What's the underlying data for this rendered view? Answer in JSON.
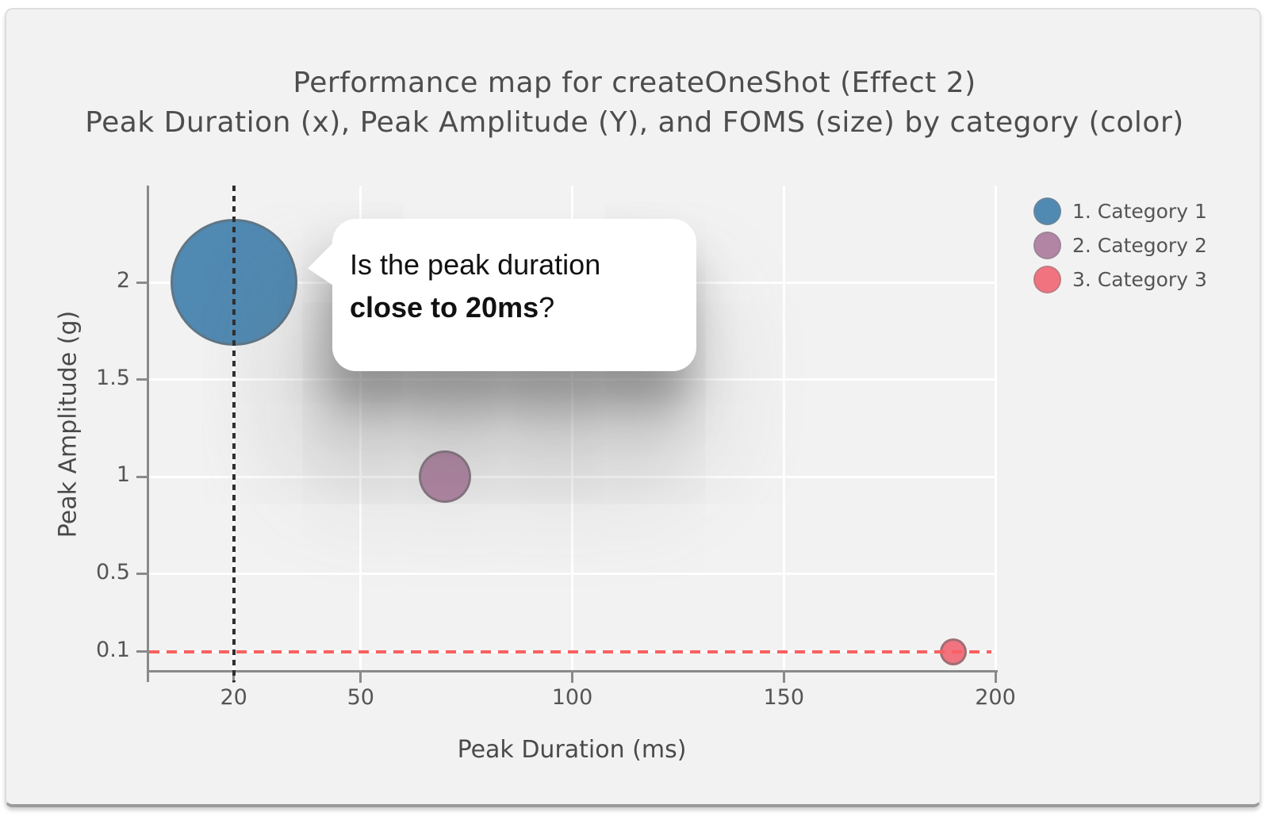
{
  "window": {
    "background": "#ffffff",
    "panel_background": "#f2f2f2",
    "panel_border": "#dedede",
    "panel_bottom_edge": "#9b9b9b"
  },
  "chart_data": {
    "type": "scatter",
    "subtype": "bubble",
    "title": "Performance map for createOneShot (Effect 2)",
    "subtitle": "Peak Duration (x), Peak Amplitude (Y), and FOMS (size) by category (color)",
    "xlabel": "Peak Duration (ms)",
    "ylabel": "Peak Amplitude (g)",
    "xlim": [
      0,
      200
    ],
    "ylim": [
      0,
      2.5
    ],
    "x_ticks": [
      20,
      50,
      100,
      150,
      200
    ],
    "y_ticks": [
      0.1,
      0.5,
      1,
      1.5,
      2
    ],
    "grid": true,
    "gridline_color": "#ffffff",
    "axis_color": "#8a8a8a",
    "tick_label_color": "#555555",
    "title_color": "#4d4d4d",
    "legend_position": "top-right",
    "legend_text_color": "#555555",
    "bubble_stroke_color": "#696969",
    "series": [
      {
        "name": "1. Category 1",
        "color": "#5089b2",
        "points": [
          {
            "x": 20,
            "y": 2.0,
            "radius_px": 80
          }
        ]
      },
      {
        "name": "2. Category 2",
        "color": "#b285a4",
        "points": [
          {
            "x": 70,
            "y": 1.0,
            "radius_px": 33
          }
        ]
      },
      {
        "name": "3. Category 3",
        "color": "#f0737f",
        "points": [
          {
            "x": 190,
            "y": 0.1,
            "radius_px": 17
          }
        ]
      }
    ],
    "reference_lines": [
      {
        "axis": "x",
        "value": 20,
        "style": "dotted",
        "color": "#2f2f2f"
      },
      {
        "axis": "y",
        "value": 0.1,
        "style": "dashed",
        "color": "#fa6060"
      }
    ],
    "annotation": {
      "text_regular": "Is the peak duration",
      "text_bold": "close to 20ms",
      "text_suffix": "?",
      "anchor_point": {
        "x": 20,
        "y": 2.0
      },
      "background": "#ffffff",
      "text_color": "#111111"
    }
  }
}
